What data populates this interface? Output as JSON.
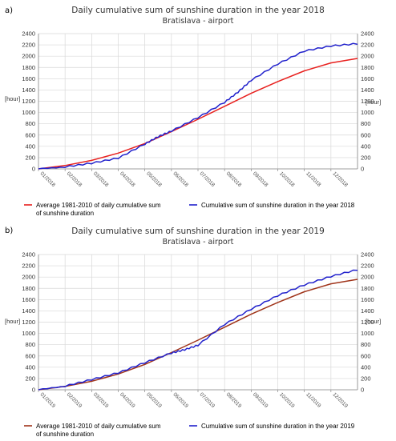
{
  "chart_data": [
    {
      "panel_label": "a)",
      "type": "line",
      "title": "Daily cumulative sum of sunshine duration in the year 2018",
      "subtitle": "Bratislava - airport",
      "ylabel": "[hour]",
      "ylim": [
        0,
        2400
      ],
      "yticks": [
        0,
        200,
        400,
        600,
        800,
        1000,
        1200,
        1400,
        1600,
        1800,
        2000,
        2200,
        2400
      ],
      "x_categories": [
        "01/2018",
        "02/2018",
        "03/2018",
        "04/2018",
        "05/2018",
        "06/2018",
        "07/2018",
        "08/2018",
        "09/2018",
        "10/2018",
        "11/2018",
        "12/2018"
      ],
      "grid": true,
      "legend_placement": "bottom",
      "series": [
        {
          "name": "Average 1981-2010 of daily cumulative sum of sunshine duration",
          "color": "#e8201e",
          "x": [
            0,
            1,
            2,
            3,
            4,
            5,
            6,
            7,
            8,
            9,
            10,
            11,
            12
          ],
          "values": [
            0,
            60,
            150,
            280,
            450,
            660,
            880,
            1110,
            1340,
            1550,
            1740,
            1880,
            1960
          ]
        },
        {
          "name": "Cumulative sum of sunshine duration in the year 2018",
          "color": "#2222cc",
          "x": [
            0,
            1,
            2,
            3,
            4,
            4.5,
            5,
            6,
            7,
            7.5,
            8,
            9,
            10,
            11,
            12
          ],
          "values": [
            0,
            25,
            90,
            180,
            430,
            560,
            660,
            900,
            1170,
            1350,
            1560,
            1850,
            2080,
            2170,
            2210
          ]
        }
      ]
    },
    {
      "panel_label": "b)",
      "type": "line",
      "title": "Daily cumulative sum of sunshine duration in the year 2019",
      "subtitle": "Bratislava - airport",
      "ylabel": "[hour]",
      "ylim": [
        0,
        2400
      ],
      "yticks": [
        0,
        200,
        400,
        600,
        800,
        1000,
        1200,
        1400,
        1600,
        1800,
        2000,
        2200,
        2400
      ],
      "x_categories": [
        "01/2019",
        "02/2019",
        "03/2019",
        "04/2019",
        "05/2019",
        "06/2019",
        "07/2019",
        "08/2019",
        "09/2019",
        "10/2019",
        "11/2019",
        "12/2019"
      ],
      "grid": true,
      "legend_placement": "bottom",
      "series": [
        {
          "name": "Average 1981-2010 of daily cumulative sum of sunshine duration",
          "color": "#a0341a",
          "x": [
            0,
            1,
            2,
            3,
            4,
            5,
            6,
            7,
            8,
            9,
            10,
            11,
            12
          ],
          "values": [
            0,
            60,
            150,
            280,
            450,
            660,
            880,
            1110,
            1340,
            1550,
            1740,
            1880,
            1960
          ]
        },
        {
          "name": "Cumulative sum of sunshine duration in the year 2019",
          "color": "#2222cc",
          "x": [
            0,
            1,
            2,
            3,
            4,
            5,
            5.5,
            6,
            7,
            8,
            9,
            10,
            11,
            12
          ],
          "values": [
            0,
            55,
            170,
            290,
            470,
            640,
            700,
            780,
            1150,
            1420,
            1660,
            1850,
            2000,
            2120
          ]
        }
      ]
    }
  ]
}
